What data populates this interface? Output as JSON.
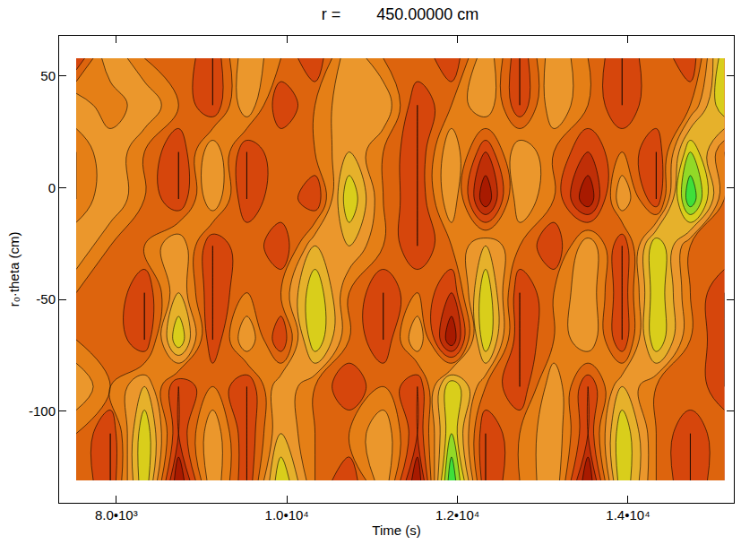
{
  "chart_data": {
    "type": "contour",
    "title": "r =        450.00000 cm",
    "x_label": "Time (s)",
    "y_label": "r₀·theta (cm)",
    "x": [
      7530,
      7930,
      8330,
      8730,
      9130,
      9530,
      9930,
      10330,
      10730,
      11130,
      11530,
      11930,
      12330,
      12730,
      13130,
      13530,
      13930,
      14330,
      14730,
      15130
    ],
    "y": [
      -131,
      -110,
      -89,
      -68,
      -47,
      -26,
      -5,
      16,
      37,
      58
    ],
    "z": [
      [
        2,
        1,
        4,
        0,
        3,
        1,
        4,
        2,
        1,
        3,
        0,
        5,
        1,
        2,
        3,
        0,
        4,
        2,
        1,
        2
      ],
      [
        2,
        1,
        4,
        1,
        3,
        1,
        3,
        2,
        2,
        3,
        1,
        4,
        1,
        2,
        3,
        1,
        4,
        2,
        1,
        2
      ],
      [
        3,
        2,
        3,
        1,
        2,
        1,
        3,
        2,
        1,
        2,
        1,
        4,
        2,
        1,
        3,
        1,
        3,
        2,
        2,
        1
      ],
      [
        2,
        2,
        1,
        4,
        1,
        3,
        1,
        4,
        2,
        1,
        3,
        0,
        4,
        1,
        2,
        3,
        1,
        4,
        2,
        1
      ],
      [
        2,
        2,
        1,
        3,
        1,
        2,
        2,
        4,
        2,
        1,
        2,
        1,
        4,
        1,
        2,
        3,
        1,
        4,
        2,
        1
      ],
      [
        3,
        2,
        2,
        3,
        1,
        2,
        1,
        3,
        3,
        2,
        1,
        2,
        3,
        2,
        1,
        3,
        1,
        4,
        2,
        2
      ],
      [
        2,
        3,
        2,
        1,
        3,
        1,
        2,
        1,
        4,
        2,
        1,
        3,
        0,
        3,
        2,
        0,
        3,
        1,
        5,
        2
      ],
      [
        2,
        3,
        2,
        1,
        3,
        1,
        2,
        2,
        3,
        2,
        1,
        3,
        1,
        3,
        2,
        1,
        2,
        1,
        4,
        2
      ],
      [
        3,
        2,
        3,
        2,
        1,
        3,
        1,
        2,
        3,
        3,
        1,
        2,
        3,
        1,
        3,
        2,
        1,
        2,
        2,
        4
      ],
      [
        1,
        3,
        2,
        2,
        1,
        3,
        2,
        1,
        3,
        2,
        2,
        1,
        3,
        1,
        3,
        2,
        1,
        2,
        1,
        4
      ]
    ],
    "zlim": [
      0,
      5
    ],
    "colors": [
      "#a81a00",
      "#d4400c",
      "#e2760e",
      "#eea034",
      "#d6d418",
      "#3ee03a"
    ],
    "xlim": [
      7330,
      15240
    ],
    "ylim": [
      -141,
      68
    ],
    "xticks": [
      {
        "value": 8000,
        "label": "8.0•10³"
      },
      {
        "value": 10000,
        "label": "1.0•10⁴"
      },
      {
        "value": 12000,
        "label": "1.2•10⁴"
      },
      {
        "value": 14000,
        "label": "1.4•10⁴"
      }
    ],
    "yticks": [
      -100,
      -50,
      0,
      50
    ],
    "grid": false
  }
}
